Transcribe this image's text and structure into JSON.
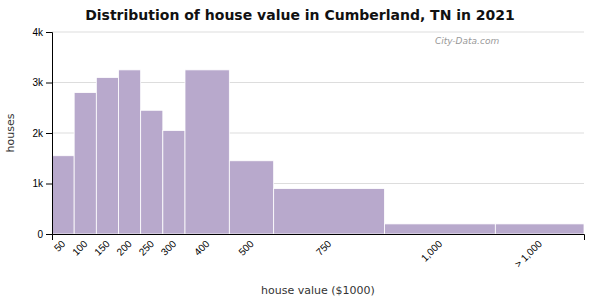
{
  "chart_data": {
    "type": "histogram",
    "title": "Distribution of house value in Cumberland, TN in 2021",
    "xlabel": "house value ($1000)",
    "ylabel": "houses",
    "categories": [
      "50",
      "100",
      "150",
      "200",
      "250",
      "300",
      "400",
      "500",
      "750",
      "1,000",
      "> 1,000"
    ],
    "bins": [
      0,
      50,
      100,
      150,
      200,
      250,
      300,
      400,
      500,
      750,
      1000,
      1200
    ],
    "values": [
      1550,
      2800,
      3100,
      3250,
      2450,
      2050,
      3250,
      1450,
      900,
      200,
      200
    ],
    "color": "#b8a9cc",
    "xlim": [
      0,
      1200
    ],
    "ylim": [
      0,
      4000
    ],
    "yticks": [
      0,
      {
        "value": 1000,
        "label": "1k"
      },
      {
        "value": 2000,
        "label": "2k"
      },
      {
        "value": 3000,
        "label": "3k"
      },
      {
        "value": 4000,
        "label": "4k"
      }
    ],
    "grid": true,
    "annotations": [
      "City-Data.com"
    ]
  }
}
